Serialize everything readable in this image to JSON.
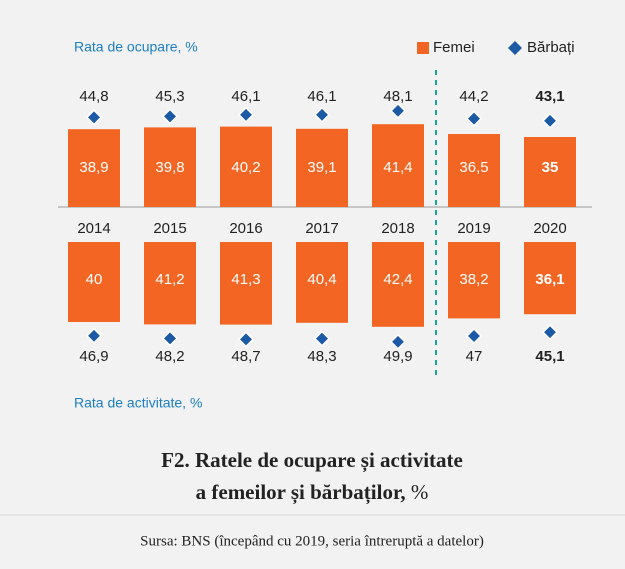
{
  "chart_data": [
    {
      "type": "bar",
      "axis_label": "Rata de ocupare, %",
      "categories": [
        "2014",
        "2015",
        "2016",
        "2017",
        "2018",
        "2019",
        "2020"
      ],
      "ylim": [
        0,
        50
      ],
      "series": [
        {
          "name": "Femei",
          "color": "#f26522",
          "marker": "bar",
          "values": [
            38.9,
            39.8,
            40.2,
            39.1,
            41.4,
            36.5,
            35
          ],
          "value_labels": [
            "38,9",
            "39,8",
            "40,2",
            "39,1",
            "41,4",
            "36,5",
            "35"
          ]
        },
        {
          "name": "Bărbați",
          "color": "#1d5aa6",
          "marker": "diamond",
          "values": [
            44.8,
            45.3,
            46.1,
            46.1,
            48.1,
            44.2,
            43.1
          ],
          "value_labels": [
            "44,8",
            "45,3",
            "46,1",
            "46,1",
            "48,1",
            "44,2",
            "43,1"
          ]
        }
      ]
    },
    {
      "type": "bar",
      "axis_label": "Rata de activitate, %",
      "ylim": [
        0,
        50
      ],
      "series": [
        {
          "color": "#f26522",
          "marker": "bar",
          "values": [
            40,
            41.2,
            41.3,
            40.4,
            42.4,
            38.2,
            36.1
          ],
          "value_labels": [
            "40",
            "41,2",
            "41,3",
            "40,4",
            "42,4",
            "38,2",
            "36,1"
          ]
        },
        {
          "color": "#1d5aa6",
          "marker": "diamond",
          "values": [
            46.9,
            48.2,
            48.7,
            48.3,
            49.9,
            47,
            45.1
          ],
          "value_labels": [
            "46,9",
            "48,2",
            "48,7",
            "48,3",
            "49,9",
            "47",
            "45,1"
          ]
        }
      ]
    }
  ],
  "caption": {
    "title": [
      "F2. Ratele de ocupare și activitate",
      "a femeilor și bărbaților,"
    ],
    "unit": "%"
  },
  "source": "Sursa: BNS (începând cu 2019, seria întreruptă a datelor)"
}
